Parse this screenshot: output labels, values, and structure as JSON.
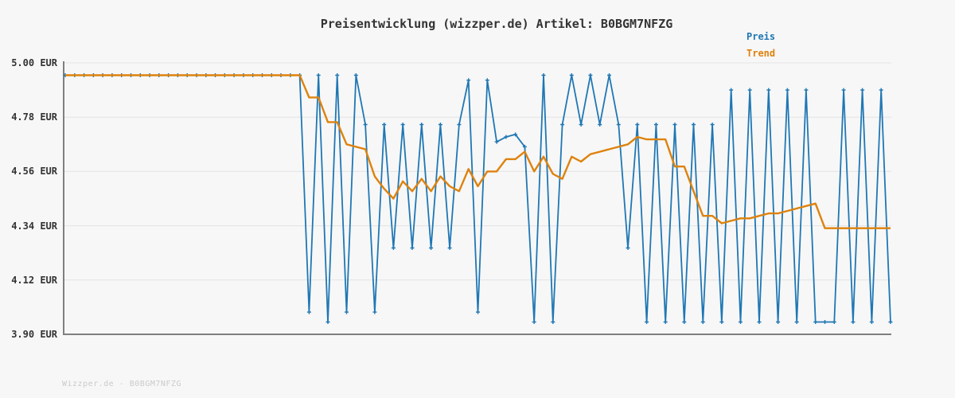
{
  "title": "Preisentwicklung (wizzper.de) Artikel: B0BGM7NFZG",
  "watermark": "Wizzper.de - B0BGM7NFZG",
  "legend": {
    "price_label": "Preis",
    "trend_label": "Trend"
  },
  "colors": {
    "price": "#1f77b4",
    "trend": "#de820d",
    "grid": "#e4e4e4",
    "axis": "#7f7f7f",
    "title_text": "#333333",
    "watermark_text": "#cbcbcb",
    "background": "#f7f7f7"
  },
  "chart_data": {
    "type": "line",
    "title": "Preisentwicklung (wizzper.de) Artikel: B0BGM7NFZG",
    "xlabel": "",
    "ylabel": "EUR",
    "ylim": [
      3.9,
      5.0
    ],
    "yticks": [
      "5.00 EUR",
      "4.78 EUR",
      "4.56 EUR",
      "4.34 EUR",
      "4.12 EUR",
      "3.90 EUR"
    ],
    "ytick_values": [
      5.0,
      4.78,
      4.56,
      4.34,
      4.12,
      3.9
    ],
    "grid": "horizontal",
    "legend_position": "top-right",
    "x_axis_labels_shown": false,
    "series": [
      {
        "name": "Preis",
        "color": "#1f77b4",
        "marker": "plus",
        "values": [
          4.95,
          4.95,
          4.95,
          4.95,
          4.95,
          4.95,
          4.95,
          4.95,
          4.95,
          4.95,
          4.95,
          4.95,
          4.95,
          4.95,
          4.95,
          4.95,
          4.95,
          4.95,
          4.95,
          4.95,
          4.95,
          4.95,
          4.95,
          4.95,
          4.95,
          4.95,
          3.99,
          4.95,
          3.95,
          4.95,
          3.99,
          4.95,
          4.75,
          3.99,
          4.75,
          4.25,
          4.75,
          4.25,
          4.75,
          4.25,
          4.75,
          4.25,
          4.75,
          4.93,
          3.99,
          4.93,
          4.68,
          4.7,
          4.71,
          4.66,
          3.95,
          4.95,
          3.95,
          4.75,
          4.95,
          4.75,
          4.95,
          4.75,
          4.95,
          4.75,
          4.25,
          4.75,
          3.95,
          4.75,
          3.95,
          4.75,
          3.95,
          4.75,
          3.95,
          4.75,
          3.95,
          4.89,
          3.95,
          4.89,
          3.95,
          4.89,
          3.95,
          4.89,
          3.95,
          4.89,
          3.95,
          3.95,
          3.95,
          4.89,
          3.95,
          4.89,
          3.95,
          4.89,
          3.95
        ]
      },
      {
        "name": "Trend",
        "color": "#de820d",
        "marker": "none",
        "values": [
          4.95,
          4.95,
          4.95,
          4.95,
          4.95,
          4.95,
          4.95,
          4.95,
          4.95,
          4.95,
          4.95,
          4.95,
          4.95,
          4.95,
          4.95,
          4.95,
          4.95,
          4.95,
          4.95,
          4.95,
          4.95,
          4.95,
          4.95,
          4.95,
          4.95,
          4.95,
          4.86,
          4.86,
          4.76,
          4.76,
          4.67,
          4.66,
          4.65,
          4.54,
          4.49,
          4.45,
          4.52,
          4.48,
          4.53,
          4.48,
          4.54,
          4.5,
          4.48,
          4.57,
          4.5,
          4.56,
          4.56,
          4.61,
          4.61,
          4.64,
          4.56,
          4.62,
          4.55,
          4.53,
          4.62,
          4.6,
          4.63,
          4.64,
          4.65,
          4.66,
          4.67,
          4.7,
          4.69,
          4.69,
          4.69,
          4.58,
          4.58,
          4.48,
          4.38,
          4.38,
          4.35,
          4.36,
          4.37,
          4.37,
          4.38,
          4.39,
          4.39,
          4.4,
          4.41,
          4.42,
          4.43,
          4.33,
          4.33,
          4.33,
          4.33,
          4.33,
          4.33,
          4.33,
          4.33
        ]
      }
    ]
  }
}
